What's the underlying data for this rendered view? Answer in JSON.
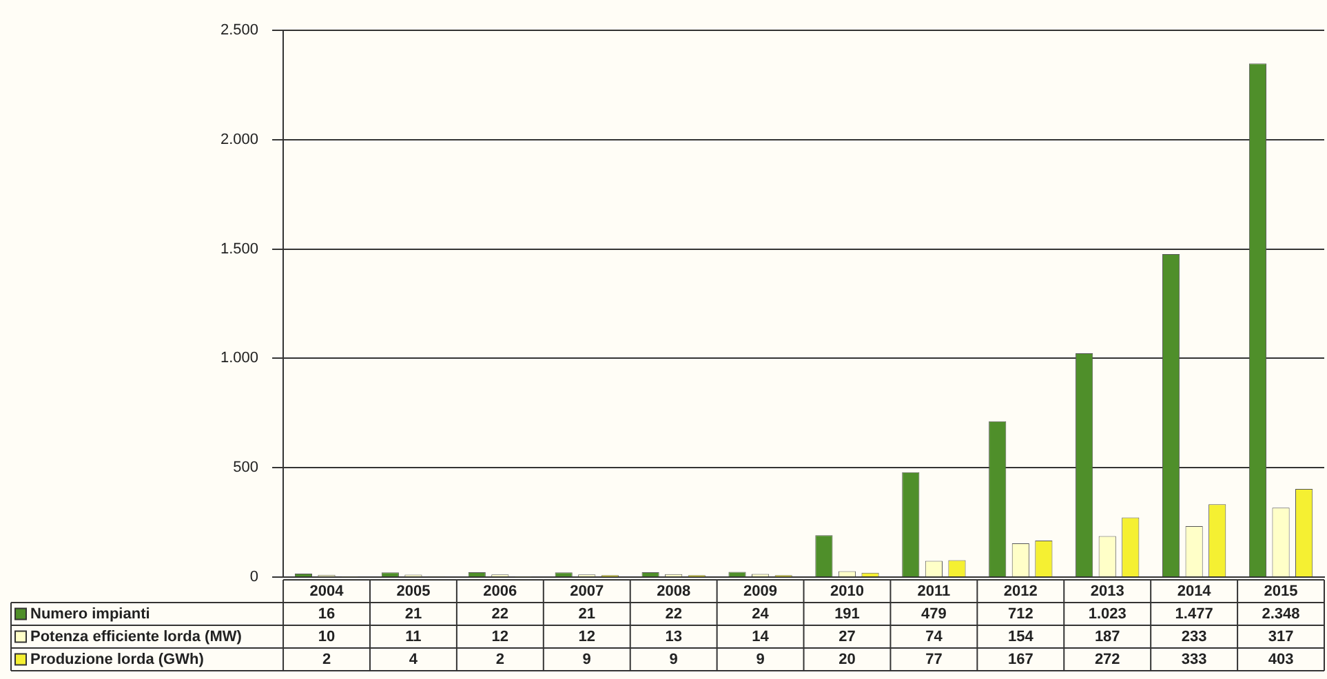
{
  "chart_data": {
    "type": "bar",
    "categories": [
      "2004",
      "2005",
      "2006",
      "2007",
      "2008",
      "2009",
      "2010",
      "2011",
      "2012",
      "2013",
      "2014",
      "2015"
    ],
    "series": [
      {
        "name": "Numero impianti",
        "color": "#4f8f2a",
        "values": [
          16,
          21,
          22,
          21,
          22,
          24,
          191,
          479,
          712,
          1023,
          1477,
          2348
        ],
        "value_labels": [
          "16",
          "21",
          "22",
          "21",
          "22",
          "24",
          "191",
          "479",
          "712",
          "1.023",
          "1.477",
          "2.348"
        ]
      },
      {
        "name": "Potenza efficiente lorda (MW)",
        "color": "#ffffc8",
        "values": [
          10,
          11,
          12,
          12,
          13,
          14,
          27,
          74,
          154,
          187,
          233,
          317
        ],
        "value_labels": [
          "10",
          "11",
          "12",
          "12",
          "13",
          "14",
          "27",
          "74",
          "154",
          "187",
          "233",
          "317"
        ]
      },
      {
        "name": "Produzione lorda (GWh)",
        "color": "#f5f032",
        "values": [
          2,
          4,
          2,
          9,
          9,
          9,
          20,
          77,
          167,
          272,
          333,
          403
        ],
        "value_labels": [
          "2",
          "4",
          "2",
          "9",
          "9",
          "9",
          "20",
          "77",
          "167",
          "272",
          "333",
          "403"
        ]
      }
    ],
    "ylim": [
      0,
      2500
    ],
    "yticks": [
      0,
      500,
      {
        "value": 1000,
        "label": "1.000"
      },
      {
        "value": 1500,
        "label": "1.500"
      },
      {
        "value": 2000,
        "label": "2.000"
      },
      {
        "value": 2500,
        "label": "2.500"
      }
    ],
    "grid": "y",
    "legend": "bottom left"
  }
}
